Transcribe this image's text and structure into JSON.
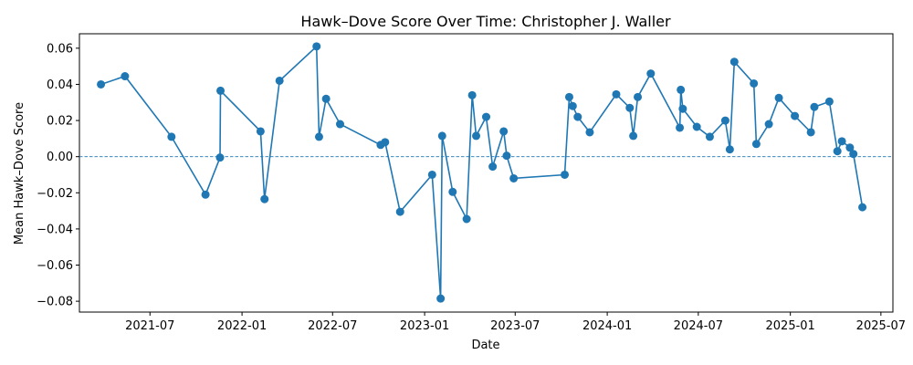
{
  "chart_data": {
    "type": "line",
    "title": "Hawk–Dove Score Over Time: Christopher J. Waller",
    "xlabel": "Date",
    "ylabel": "Mean Hawk–Dove Score",
    "x_ticks": [
      "2021-07",
      "2022-01",
      "2022-07",
      "2023-01",
      "2023-07",
      "2024-01",
      "2024-07",
      "2025-01",
      "2025-07"
    ],
    "y_ticks": [
      "−0.08",
      "−0.06",
      "−0.04",
      "−0.02",
      "0.00",
      "0.02",
      "0.04",
      "0.06"
    ],
    "xlim": [
      "2021-02-10",
      "2025-07-25"
    ],
    "ylim": [
      -0.086,
      0.068
    ],
    "reference_line": {
      "y": 0,
      "style": "dashed"
    },
    "color": "#1f77b4",
    "series": [
      {
        "x": [
          "2021-03-25",
          "2021-05-12",
          "2021-08-13",
          "2021-10-20",
          "2021-11-18",
          "2021-11-19",
          "2022-02-07",
          "2022-02-15",
          "2022-03-17",
          "2022-05-30",
          "2022-06-04",
          "2022-06-18",
          "2022-07-16",
          "2022-10-05",
          "2022-10-14",
          "2022-11-13",
          "2023-01-16",
          "2023-02-02",
          "2023-02-05",
          "2023-02-26",
          "2023-03-26",
          "2023-04-06",
          "2023-04-14",
          "2023-05-04",
          "2023-05-17",
          "2023-06-08",
          "2023-06-14",
          "2023-06-28",
          "2023-10-08",
          "2023-10-17",
          "2023-10-24",
          "2023-11-03",
          "2023-11-27",
          "2024-01-19",
          "2024-02-15",
          "2024-02-22",
          "2024-03-02",
          "2024-03-28",
          "2024-05-25",
          "2024-05-27",
          "2024-05-31",
          "2024-06-28",
          "2024-07-24",
          "2024-08-24",
          "2024-09-02",
          "2024-09-11",
          "2024-10-20",
          "2024-10-25",
          "2024-11-19",
          "2024-12-09",
          "2025-01-10",
          "2025-02-11",
          "2025-02-18",
          "2025-03-20",
          "2025-04-05",
          "2025-04-14",
          "2025-04-30",
          "2025-05-07",
          "2025-05-25"
        ],
        "y": [
          0.04,
          0.0445,
          0.011,
          -0.021,
          -0.0005,
          0.0365,
          0.014,
          -0.0235,
          0.042,
          0.061,
          0.011,
          0.032,
          0.018,
          0.0065,
          0.008,
          -0.0305,
          -0.01,
          -0.0785,
          0.0115,
          -0.0195,
          -0.0345,
          0.034,
          0.0115,
          0.022,
          -0.0055,
          0.014,
          0.0005,
          -0.012,
          -0.01,
          0.033,
          0.028,
          0.022,
          0.0135,
          0.0345,
          0.027,
          0.0115,
          0.033,
          0.046,
          0.016,
          0.037,
          0.0265,
          0.0165,
          0.011,
          0.02,
          0.004,
          0.0525,
          0.0405,
          0.007,
          0.018,
          0.0325,
          0.0225,
          0.0135,
          0.0275,
          0.0305,
          0.003,
          0.0085,
          0.005,
          0.0015,
          -0.028
        ]
      }
    ]
  }
}
